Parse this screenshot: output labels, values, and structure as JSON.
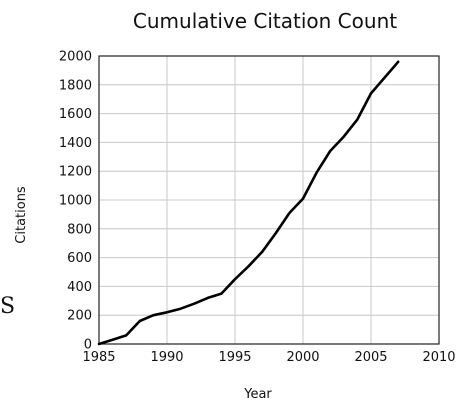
{
  "chart_data": {
    "type": "line",
    "title": "Cumulative Citation Count",
    "xlabel": "Year",
    "ylabel": "Citations",
    "xlim": [
      1985,
      2010
    ],
    "ylim": [
      0,
      2000
    ],
    "x_ticks": [
      "1985",
      "1990",
      "1995",
      "2000",
      "2005",
      "2010"
    ],
    "y_ticks": [
      "0",
      "200",
      "400",
      "600",
      "800",
      "1000",
      "1200",
      "1400",
      "1600",
      "1800",
      "2000"
    ],
    "grid": true,
    "series": [
      {
        "x": [
          1985,
          1986,
          1987,
          1988,
          1989,
          1990,
          1991,
          1992,
          1993,
          1994,
          1995,
          1996,
          1997,
          1998,
          1999,
          2000,
          2001,
          2002,
          2003,
          2004,
          2005,
          2006,
          2007
        ],
        "y": [
          0,
          30,
          60,
          160,
          200,
          220,
          245,
          280,
          320,
          350,
          450,
          540,
          640,
          770,
          910,
          1010,
          1190,
          1340,
          1440,
          1560,
          1740,
          1850,
          1960
        ]
      }
    ]
  },
  "side_fragment": "S"
}
